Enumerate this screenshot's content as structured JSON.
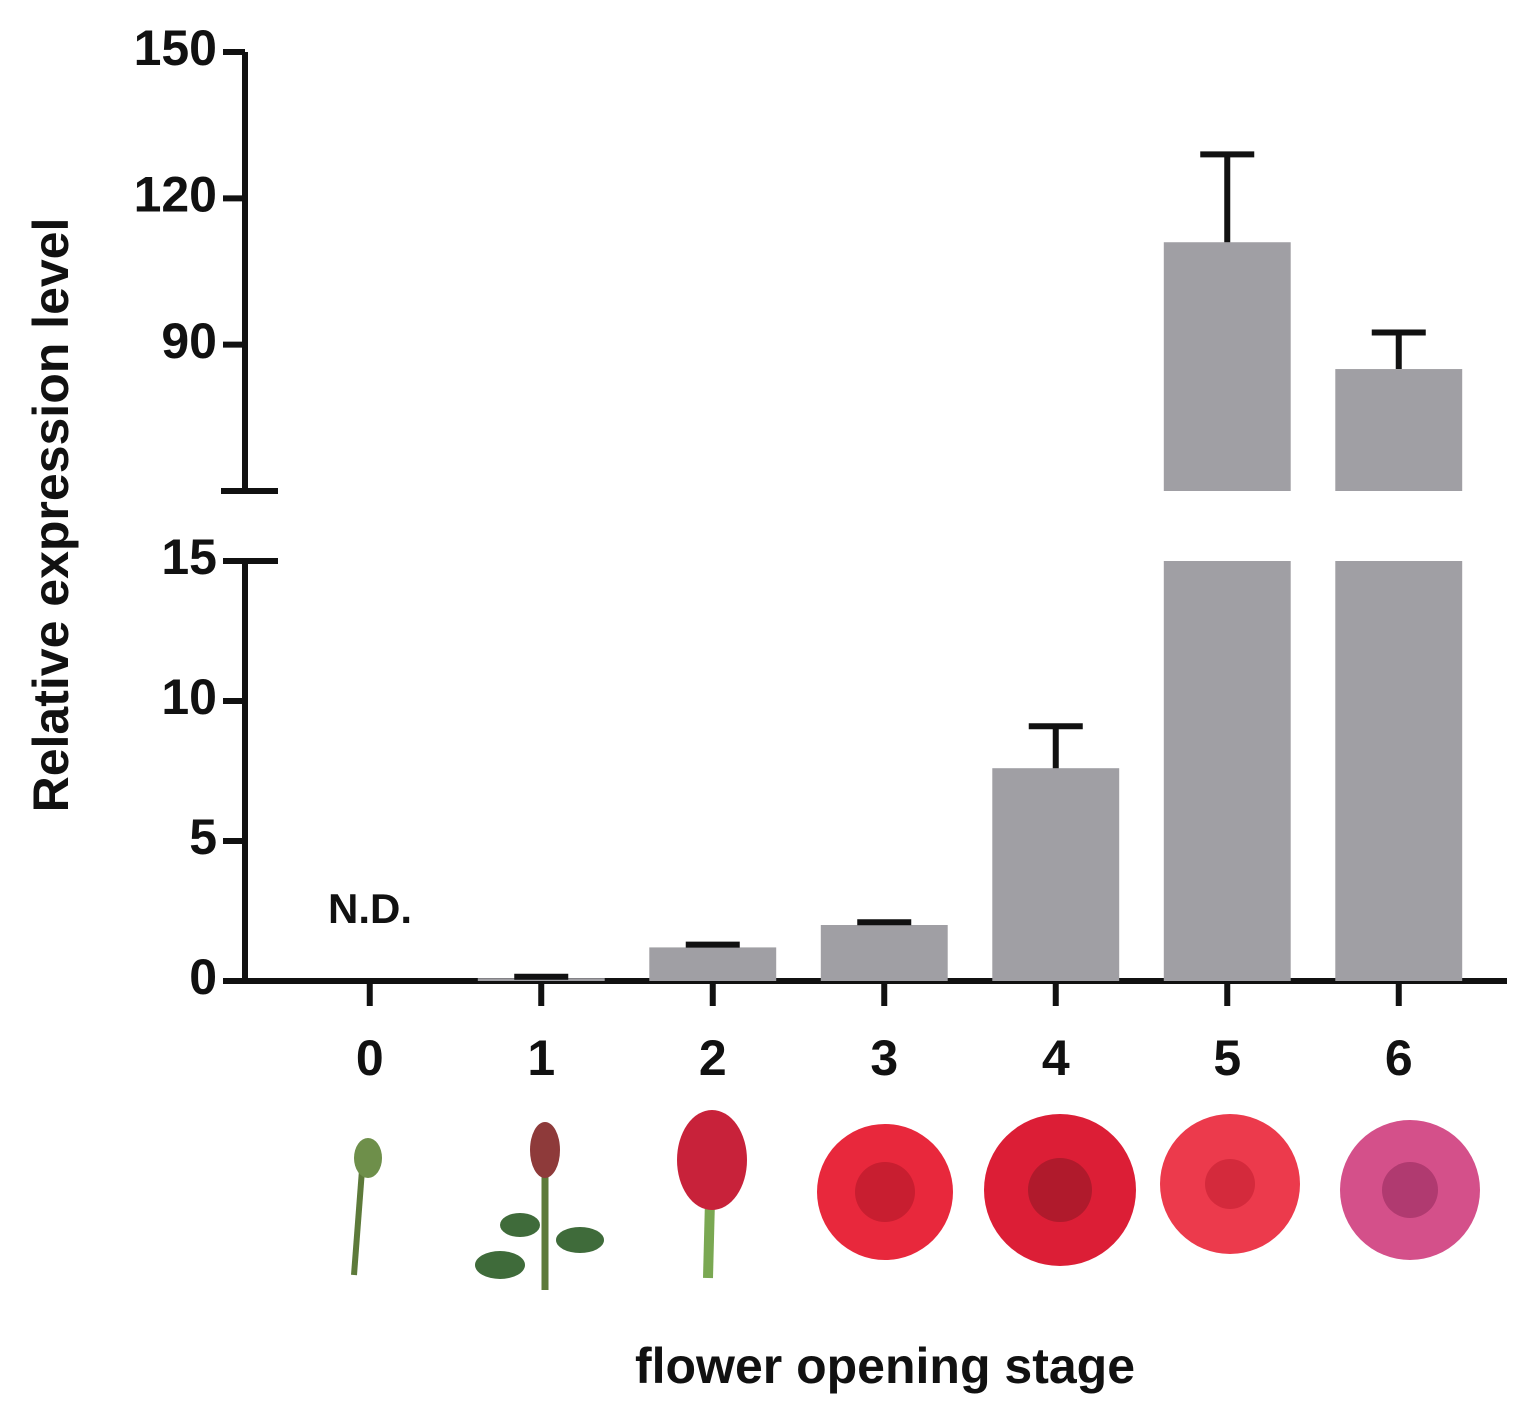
{
  "chart_data": {
    "type": "bar",
    "y_label": "Relative expression level",
    "x_label": "flower opening stage",
    "categories": [
      "0",
      "1",
      "2",
      "3",
      "4",
      "5",
      "6"
    ],
    "values": [
      null,
      0.1,
      1.2,
      2.0,
      7.6,
      111,
      85
    ],
    "errors": [
      null,
      0.05,
      0.1,
      0.1,
      1.5,
      18,
      7.5
    ],
    "annotation": "N.D.",
    "color": "#a09fa4",
    "ylim_lower": [
      0,
      15
    ],
    "yticks_lower": [
      0,
      5,
      10,
      15
    ],
    "ylim_upper": [
      60,
      150
    ],
    "yticks_upper": [
      90,
      120,
      150
    ]
  }
}
